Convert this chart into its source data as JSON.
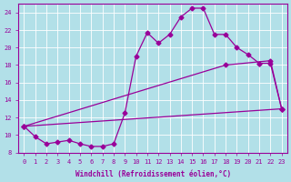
{
  "background_color": "#b2e0e8",
  "grid_color": "#ffffff",
  "line_color": "#990099",
  "xlabel": "Windchill (Refroidissement éolien,°C)",
  "xlim": [
    -0.5,
    23.5
  ],
  "ylim": [
    8,
    25
  ],
  "xticks": [
    0,
    1,
    2,
    3,
    4,
    5,
    6,
    7,
    8,
    9,
    10,
    11,
    12,
    13,
    14,
    15,
    16,
    17,
    18,
    19,
    20,
    21,
    22,
    23
  ],
  "yticks": [
    8,
    10,
    12,
    14,
    16,
    18,
    20,
    22,
    24
  ],
  "curve1_x": [
    0,
    1,
    2,
    3,
    4,
    5,
    6,
    7,
    8,
    9,
    10,
    11,
    12,
    13,
    14,
    15,
    16,
    17,
    18,
    19,
    20,
    21
  ],
  "curve1_y": [
    11.0,
    9.8,
    9.0,
    9.2,
    9.4,
    9.0,
    8.7,
    8.7,
    9.0,
    12.5,
    19.0,
    21.7,
    20.5,
    21.5,
    23.5,
    24.5,
    24.5,
    21.5,
    21.5,
    20.0,
    19.2,
    18.2
  ],
  "curve2_x": [
    21,
    22,
    23
  ],
  "curve2_y": [
    18.2,
    18.2,
    13.0
  ],
  "curve3_x": [
    0,
    18,
    22,
    23
  ],
  "curve3_y": [
    11.0,
    18.0,
    18.5,
    13.0
  ],
  "curve4_x": [
    0,
    23
  ],
  "curve4_y": [
    11.0,
    13.0
  ]
}
